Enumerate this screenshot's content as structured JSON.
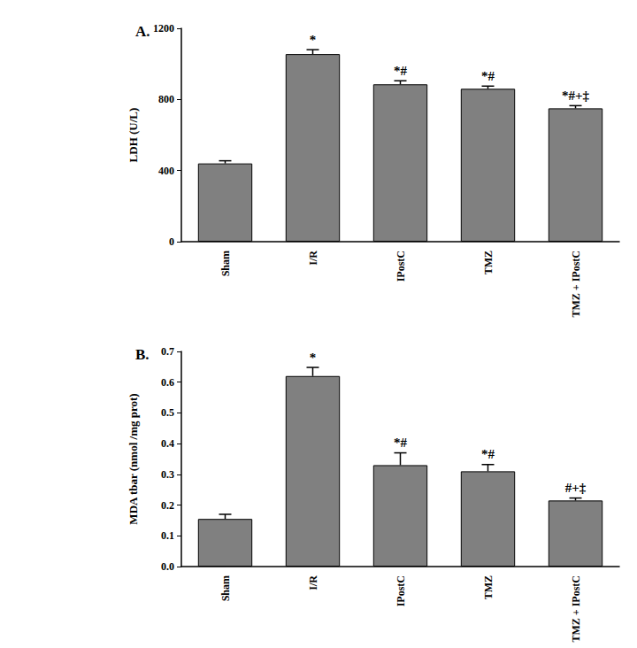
{
  "chart_data": [
    {
      "type": "bar",
      "title": "A.",
      "y_label": "LDH (U/L)",
      "categories": [
        "Sham",
        "I/R",
        "IPostC",
        "TMZ",
        "TMZ + IPostC"
      ],
      "values": [
        440,
        1055,
        885,
        860,
        750
      ],
      "error": [
        15,
        25,
        20,
        15,
        15
      ],
      "annotations": [
        null,
        "*",
        "*#",
        "*#",
        "*#+‡"
      ],
      "color": "#808080",
      "ylim": [
        0,
        1200
      ],
      "yticks": [
        0,
        400,
        800,
        1200
      ],
      "grid": false
    },
    {
      "type": "bar",
      "title": "B.",
      "y_label": "MDA tbar (nmol /mg prot)",
      "categories": [
        "Sham",
        "I/R",
        "IPostC",
        "TMZ",
        "TMZ + IPostC"
      ],
      "values": [
        0.155,
        0.62,
        0.33,
        0.31,
        0.215
      ],
      "error": [
        0.015,
        0.028,
        0.04,
        0.022,
        0.008
      ],
      "annotations": [
        null,
        "*",
        "*#",
        "*#",
        "#+‡"
      ],
      "color": "#808080",
      "ylim": [
        0,
        0.7
      ],
      "yticks": [
        {
          "value": 0,
          "label": "0.0"
        },
        {
          "value": 0.1,
          "label": "0.1"
        },
        {
          "value": 0.2,
          "label": "0.2"
        },
        {
          "value": 0.3,
          "label": "0.3"
        },
        {
          "value": 0.4,
          "label": "0.4"
        },
        {
          "value": 0.5,
          "label": "0.5"
        },
        {
          "value": 0.6,
          "label": "0.6"
        },
        {
          "value": 0.7,
          "label": "0.7"
        }
      ],
      "grid": false
    }
  ]
}
